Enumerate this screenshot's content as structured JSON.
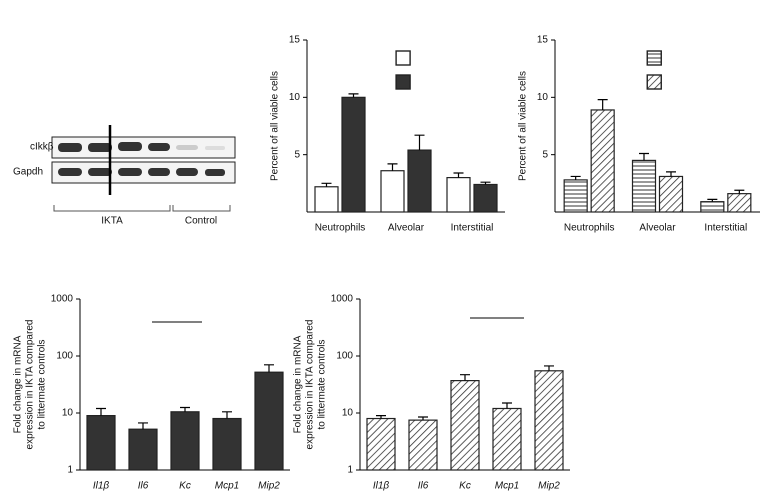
{
  "blot": {
    "rows": [
      "cIkkβ",
      "Gapdh"
    ],
    "groups": [
      "IKTA",
      "Control"
    ]
  },
  "chart_data": [
    {
      "type": "bar",
      "ylabel": [
        "Percent of all viable cells"
      ],
      "categories": [
        "Neutrophils",
        "Alveolar",
        "Interstitial"
      ],
      "series": [
        {
          "color": "#ffffff",
          "pattern": "solid",
          "values": [
            2.2,
            3.6,
            3.0
          ],
          "errors": [
            0.3,
            0.6,
            0.4
          ]
        },
        {
          "color": "#333333",
          "pattern": "solid",
          "values": [
            10.0,
            5.4,
            2.4
          ],
          "errors": [
            0.3,
            1.3,
            0.2
          ]
        }
      ],
      "ylim": [
        0,
        15
      ],
      "yticks": [
        5,
        10,
        15
      ],
      "log_scale": false,
      "legend": "upper center"
    },
    {
      "type": "bar",
      "ylabel": [
        "Percent of all viable cells"
      ],
      "categories": [
        "Neutrophils",
        "Alveolar",
        "Interstitial"
      ],
      "series": [
        {
          "color": "#333333",
          "pattern": "horizontal",
          "values": [
            2.8,
            4.5,
            0.9
          ],
          "errors": [
            0.3,
            0.6,
            0.2
          ]
        },
        {
          "color": "#333333",
          "pattern": "diagonal",
          "values": [
            8.9,
            3.1,
            1.6
          ],
          "errors": [
            0.9,
            0.4,
            0.3
          ]
        }
      ],
      "ylim": [
        0,
        15
      ],
      "yticks": [
        5,
        10,
        15
      ],
      "log_scale": false,
      "legend": "upper center"
    },
    {
      "type": "bar",
      "ylabel": [
        "Fold change in mRNA",
        "expression in IKTA compared",
        "to littermate controls"
      ],
      "categories": [
        "Il1β",
        "Il6",
        "Kc",
        "Mcp1",
        "Mip2"
      ],
      "series": [
        {
          "color": "#333333",
          "pattern": "solid",
          "values": [
            9,
            5.2,
            10.5,
            8,
            52
          ],
          "errors": [
            3,
            1.5,
            2,
            2.5,
            18
          ]
        }
      ],
      "ylim": [
        1,
        1000
      ],
      "yticks": [
        1,
        10,
        100,
        1000
      ],
      "log_scale": true
    },
    {
      "type": "bar",
      "ylabel": [
        "Fold change in mRNA",
        "expression in IKTA compared",
        "to littermate controls"
      ],
      "categories": [
        "Il1β",
        "Il6",
        "Kc",
        "Mcp1",
        "Mip2"
      ],
      "series": [
        {
          "color": "#333333",
          "pattern": "diagonal",
          "values": [
            8,
            7.5,
            37,
            12,
            55
          ],
          "errors": [
            1,
            1,
            10,
            3,
            12
          ]
        }
      ],
      "ylim": [
        1,
        1000
      ],
      "yticks": [
        1,
        10,
        100,
        1000
      ],
      "log_scale": true
    }
  ]
}
